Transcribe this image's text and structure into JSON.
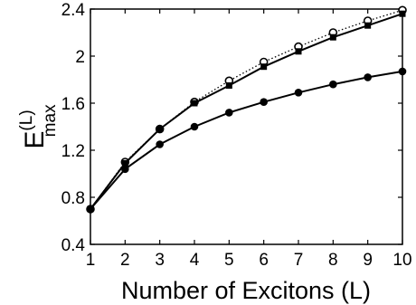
{
  "chart_data": {
    "type": "line",
    "xlabel": "Number of Excitons (L)",
    "ylabel": {
      "base": "E",
      "superscript": "(L)",
      "subscript": "max"
    },
    "xlim": [
      1,
      10
    ],
    "ylim": [
      0.4,
      2.4
    ],
    "xticks": [
      1,
      2,
      3,
      4,
      5,
      6,
      7,
      8,
      9,
      10
    ],
    "xtick_labels": [
      "1",
      "2",
      "3",
      "4",
      "5",
      "6",
      "7",
      "8",
      "9",
      "10"
    ],
    "yticks": [
      0.4,
      0.8,
      1.2,
      1.6,
      2.0,
      2.4
    ],
    "ytick_labels": [
      "0.4",
      "0.8",
      "1.2",
      "1.6",
      "2",
      "2.4"
    ],
    "grid": false,
    "series": [
      {
        "marker": "open-circle",
        "line": "dotted",
        "color": "#000000",
        "x": [
          1,
          2,
          3,
          4,
          5,
          6,
          7,
          8,
          9,
          10
        ],
        "y": [
          0.7,
          1.1,
          1.38,
          1.61,
          1.79,
          1.95,
          2.08,
          2.2,
          2.3,
          2.39
        ]
      },
      {
        "marker": "filled-square",
        "line": "solid",
        "color": "#000000",
        "x": [
          1,
          2,
          3,
          4,
          5,
          6,
          7,
          8,
          9,
          10
        ],
        "y": [
          0.7,
          1.09,
          1.38,
          1.6,
          1.75,
          1.91,
          2.04,
          2.16,
          2.26,
          2.36
        ]
      },
      {
        "marker": "filled-circle",
        "line": "solid",
        "color": "#000000",
        "x": [
          1,
          2,
          3,
          4,
          5,
          6,
          7,
          8,
          9,
          10
        ],
        "y": [
          0.7,
          1.04,
          1.25,
          1.4,
          1.52,
          1.61,
          1.69,
          1.76,
          1.82,
          1.87
        ]
      }
    ]
  }
}
